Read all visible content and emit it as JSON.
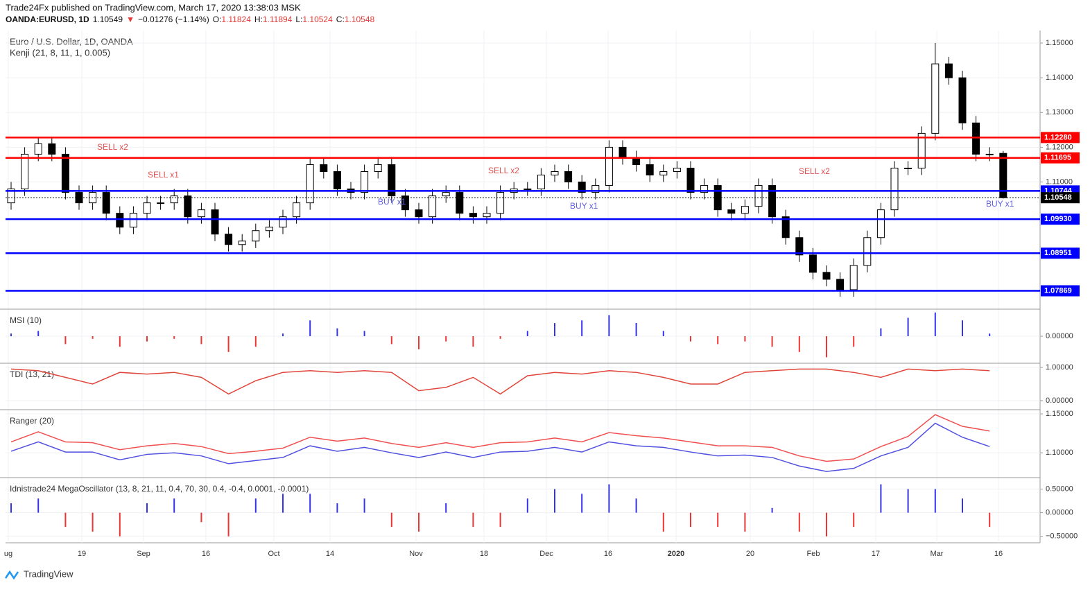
{
  "header": {
    "publisher": "Trade24Fx published on TradingView.com, March 17, 2020 13:38:03 MSK",
    "symbol": "OANDA:EURUSD, 1D",
    "last": "1.10549",
    "arrow": "▼",
    "change": "−0.01276 (−1.14%)",
    "ohlc": [
      {
        "label": "O:",
        "value": "1.11824"
      },
      {
        "label": "H:",
        "value": "1.11894"
      },
      {
        "label": "L:",
        "value": "1.10524"
      },
      {
        "label": "C:",
        "value": "1.10548"
      }
    ],
    "instrument": "Euro / U.S. Dollar, 1D, OANDA",
    "indicator": "Kenji (21, 8, 11, 1, 0.005)"
  },
  "footer": {
    "brand": "TradingView"
  },
  "x_axis_labels": [
    "ug",
    "19",
    "Sep",
    "16",
    "Oct",
    "14",
    "Nov",
    "18",
    "Dec",
    "16",
    "2020",
    "20",
    "Feb",
    "17",
    "Mar",
    "16"
  ],
  "chart_data": [
    {
      "type": "candlestick",
      "ylim": [
        1.0736,
        1.1536
      ],
      "yticks": [
        {
          "value": 1.15,
          "label": "1.15000"
        },
        {
          "value": 1.14,
          "label": "1.14000"
        },
        {
          "value": 1.13,
          "label": "1.13000"
        },
        {
          "value": 1.12,
          "label": "1.12000"
        },
        {
          "value": 1.11,
          "label": "1.11000"
        }
      ],
      "levels": [
        {
          "value": 1.1228,
          "label": "1.12280",
          "color": "#ff0000"
        },
        {
          "value": 1.11695,
          "label": "1.11695",
          "color": "#ff0000"
        },
        {
          "value": 1.10744,
          "label": "1.10744",
          "color": "#0000ff"
        },
        {
          "value": 1.0993,
          "label": "1.09930",
          "color": "#0000ff"
        },
        {
          "value": 1.08951,
          "label": "1.08951",
          "color": "#0000ff"
        },
        {
          "value": 1.07869,
          "label": "1.07869",
          "color": "#0000ff"
        }
      ],
      "current": {
        "value": 1.10548,
        "label": "1.10548",
        "color": "#000000"
      },
      "annotations": [
        "SELL x2",
        "SELL x1",
        "SELL x2",
        "BUY x1",
        "BUY x1",
        "SELL x2",
        "BUY x1"
      ],
      "open": [
        1.104,
        1.108,
        1.118,
        1.121,
        1.118,
        1.107,
        1.104,
        1.107,
        1.101,
        1.097,
        1.101,
        1.104,
        1.104,
        1.106,
        1.1,
        1.102,
        1.095,
        1.092,
        1.093,
        1.096,
        1.097,
        1.1,
        1.104,
        1.115,
        1.113,
        1.108,
        1.107,
        1.113,
        1.115,
        1.106,
        1.102,
        1.1,
        1.106,
        1.107,
        1.101,
        1.1,
        1.101,
        1.107,
        1.108,
        1.108,
        1.112,
        1.113,
        1.11,
        1.107,
        1.109,
        1.12,
        1.117,
        1.115,
        1.112,
        1.113,
        1.114,
        1.107,
        1.109,
        1.102,
        1.101,
        1.103,
        1.109,
        1.1,
        1.094,
        1.089,
        1.084,
        1.082,
        1.079,
        1.086,
        1.094,
        1.102,
        1.114,
        1.114,
        1.124,
        1.144,
        1.14,
        1.127,
        1.118,
        1.11824
      ],
      "high": [
        1.11,
        1.12,
        1.123,
        1.123,
        1.12,
        1.109,
        1.109,
        1.109,
        1.103,
        1.103,
        1.106,
        1.106,
        1.108,
        1.108,
        1.104,
        1.104,
        1.097,
        1.095,
        1.098,
        1.099,
        1.102,
        1.106,
        1.117,
        1.117,
        1.115,
        1.11,
        1.115,
        1.117,
        1.117,
        1.108,
        1.104,
        1.108,
        1.109,
        1.109,
        1.103,
        1.103,
        1.109,
        1.11,
        1.11,
        1.114,
        1.115,
        1.115,
        1.112,
        1.111,
        1.122,
        1.122,
        1.119,
        1.117,
        1.115,
        1.116,
        1.116,
        1.111,
        1.111,
        1.104,
        1.105,
        1.111,
        1.111,
        1.102,
        1.096,
        1.091,
        1.086,
        1.084,
        1.088,
        1.096,
        1.104,
        1.116,
        1.116,
        1.126,
        1.15,
        1.146,
        1.142,
        1.129,
        1.12,
        1.11894
      ],
      "low": [
        1.102,
        1.106,
        1.116,
        1.116,
        1.105,
        1.102,
        1.102,
        1.099,
        1.095,
        1.095,
        1.099,
        1.102,
        1.102,
        1.098,
        1.098,
        1.093,
        1.09,
        1.09,
        1.091,
        1.094,
        1.095,
        1.098,
        1.102,
        1.111,
        1.106,
        1.105,
        1.105,
        1.111,
        1.104,
        1.1,
        1.098,
        1.098,
        1.104,
        1.099,
        1.098,
        1.098,
        1.099,
        1.105,
        1.106,
        1.106,
        1.11,
        1.108,
        1.105,
        1.105,
        1.107,
        1.115,
        1.113,
        1.11,
        1.11,
        1.111,
        1.105,
        1.105,
        1.1,
        1.099,
        1.099,
        1.101,
        1.098,
        1.092,
        1.087,
        1.082,
        1.08,
        1.077,
        1.077,
        1.084,
        1.092,
        1.1,
        1.112,
        1.112,
        1.122,
        1.138,
        1.125,
        1.116,
        1.116,
        1.10524
      ],
      "close": [
        1.108,
        1.118,
        1.121,
        1.118,
        1.107,
        1.104,
        1.107,
        1.101,
        1.097,
        1.101,
        1.104,
        1.104,
        1.106,
        1.1,
        1.102,
        1.095,
        1.092,
        1.093,
        1.096,
        1.097,
        1.1,
        1.104,
        1.115,
        1.113,
        1.108,
        1.107,
        1.113,
        1.115,
        1.106,
        1.102,
        1.1,
        1.106,
        1.107,
        1.101,
        1.1,
        1.101,
        1.107,
        1.108,
        1.108,
        1.112,
        1.113,
        1.11,
        1.107,
        1.109,
        1.12,
        1.117,
        1.115,
        1.112,
        1.113,
        1.114,
        1.107,
        1.109,
        1.102,
        1.101,
        1.103,
        1.109,
        1.1,
        1.094,
        1.089,
        1.084,
        1.082,
        1.079,
        1.086,
        1.094,
        1.102,
        1.114,
        1.114,
        1.124,
        1.144,
        1.14,
        1.127,
        1.118,
        1.118,
        1.10548
      ]
    },
    {
      "type": "histogram",
      "title": "MSI (10)",
      "ylim": [
        -1,
        1
      ],
      "yticks": [
        {
          "value": 0,
          "label": "0.00000"
        }
      ],
      "values": [
        0.1,
        0.2,
        -0.3,
        -0.1,
        -0.4,
        -0.2,
        -0.1,
        -0.3,
        -0.6,
        -0.4,
        0.1,
        0.6,
        0.3,
        0.2,
        -0.3,
        -0.5,
        -0.2,
        -0.4,
        -0.1,
        0.2,
        0.5,
        0.6,
        0.8,
        0.5,
        0.2,
        -0.2,
        -0.3,
        -0.2,
        -0.4,
        -0.6,
        -0.8,
        -0.4,
        0.3,
        0.7,
        0.9,
        0.6,
        0.1
      ]
    },
    {
      "type": "line",
      "title": "TDI (13, 21)",
      "ylim": [
        -0.25,
        1.104
      ],
      "yticks": [
        {
          "value": 1,
          "label": "1.00000"
        },
        {
          "value": 0,
          "label": "0.00000"
        }
      ],
      "series": [
        {
          "color": "#e0453a",
          "values": [
            0.95,
            0.9,
            0.7,
            0.5,
            0.85,
            0.8,
            0.85,
            0.7,
            0.2,
            0.6,
            0.85,
            0.9,
            0.85,
            0.9,
            0.85,
            0.3,
            0.4,
            0.7,
            0.2,
            0.75,
            0.85,
            0.8,
            0.9,
            0.85,
            0.7,
            0.5,
            0.5,
            0.85,
            0.9,
            0.95,
            0.95,
            0.85,
            0.7,
            0.95,
            0.9,
            0.95,
            0.9
          ]
        }
      ]
    },
    {
      "type": "line",
      "title": "Ranger (20)",
      "ylim": [
        1.069,
        1.1545
      ],
      "yticks": [
        {
          "value": 1.15,
          "label": "1.15000"
        },
        {
          "value": 1.1,
          "label": "1.10000"
        }
      ],
      "series": [
        {
          "color": "#f05050",
          "values": [
            1.114,
            1.127,
            1.114,
            1.113,
            1.104,
            1.109,
            1.112,
            1.108,
            1.099,
            1.102,
            1.106,
            1.12,
            1.115,
            1.119,
            1.112,
            1.107,
            1.113,
            1.107,
            1.113,
            1.114,
            1.119,
            1.114,
            1.126,
            1.122,
            1.119,
            1.114,
            1.109,
            1.109,
            1.107,
            1.096,
            1.089,
            1.092,
            1.108,
            1.121,
            1.149,
            1.134,
            1.128
          ]
        },
        {
          "color": "#5050e0",
          "values": [
            1.102,
            1.114,
            1.101,
            1.101,
            1.091,
            1.098,
            1.1,
            1.096,
            1.086,
            1.09,
            1.094,
            1.109,
            1.102,
            1.107,
            1.1,
            1.094,
            1.101,
            1.094,
            1.101,
            1.102,
            1.107,
            1.101,
            1.114,
            1.109,
            1.107,
            1.101,
            1.096,
            1.097,
            1.094,
            1.083,
            1.076,
            1.08,
            1.096,
            1.107,
            1.138,
            1.12,
            1.108
          ]
        }
      ]
    },
    {
      "type": "histogram",
      "title": "Idnistrade24 MegaOscillator (13, 8, 21, 11, 0.4, 70, 30, 0.4, -0.4, 0.0001, -0.0001)",
      "ylim": [
        -0.636,
        0.727
      ],
      "yticks": [
        {
          "value": 0.5,
          "label": "0.50000"
        },
        {
          "value": 0,
          "label": "0.00000"
        },
        {
          "value": -0.5,
          "label": "−0.50000"
        }
      ],
      "values": [
        0.2,
        0.3,
        -0.3,
        -0.4,
        -0.5,
        0.2,
        0.3,
        -0.2,
        -0.5,
        0.3,
        0.4,
        0.4,
        0.2,
        0.3,
        -0.3,
        -0.4,
        0.2,
        -0.3,
        -0.3,
        0.3,
        0.5,
        0.4,
        0.6,
        0.3,
        -0.4,
        -0.3,
        -0.3,
        -0.4,
        0.1,
        -0.4,
        -0.5,
        -0.3,
        0.6,
        0.5,
        0.5,
        0.3,
        -0.3
      ]
    }
  ]
}
